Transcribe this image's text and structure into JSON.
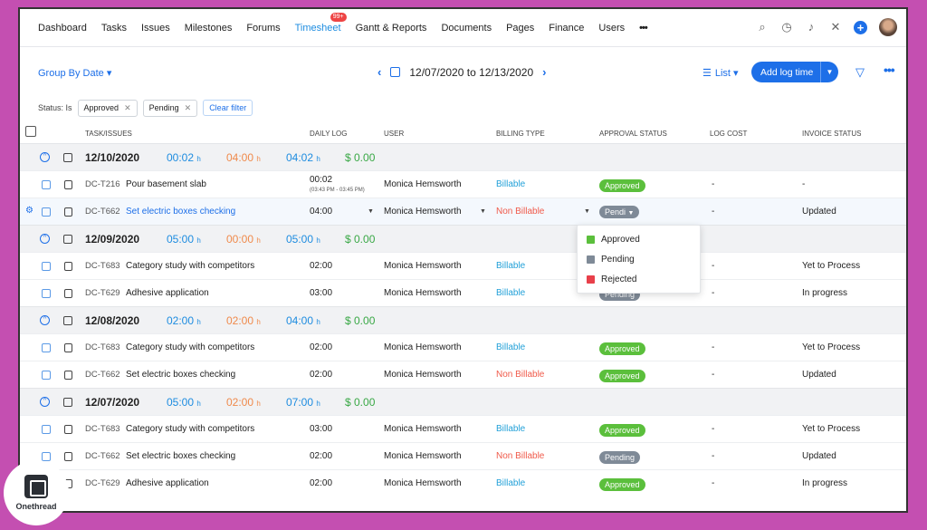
{
  "nav": {
    "items": [
      "Dashboard",
      "Tasks",
      "Issues",
      "Milestones",
      "Forums",
      "Timesheet",
      "Gantt & Reports",
      "Documents",
      "Pages",
      "Finance",
      "Users"
    ],
    "active": "Timesheet",
    "timesheet_badge": "99+",
    "more": "•••"
  },
  "toolbar": {
    "group_by": "Group By Date ▾",
    "date_range": "12/07/2020 to 12/13/2020",
    "view": "List ▾",
    "add_log": "Add log time"
  },
  "filters": {
    "label": "Status: Is",
    "chips": [
      "Approved",
      "Pending"
    ],
    "clear": "Clear filter"
  },
  "columns": [
    "TASK/ISSUES",
    "DAILY LOG",
    "USER",
    "BILLING TYPE",
    "APPROVAL STATUS",
    "LOG COST",
    "INVOICE STATUS"
  ],
  "groups": [
    {
      "date": "12/10/2020",
      "billable_hours": "00:02",
      "non_billable_hours": "04:00",
      "total_hours": "04:02",
      "cost": "$ 0.00",
      "rows": [
        {
          "code": "DC-T216",
          "task": "Pour basement slab",
          "log": "00:02",
          "log_detail": "(03:43 PM - 03:45 PM)",
          "user": "Monica Hemsworth",
          "billing": "Billable",
          "status": "Approved",
          "cost": "-",
          "invoice": "-"
        },
        {
          "code": "DC-T662",
          "task": "Set electric boxes checking",
          "log": "04:00",
          "user": "Monica Hemsworth",
          "billing": "Non Billable",
          "status": "Pendi",
          "cost": "-",
          "invoice": "Updated"
        }
      ]
    },
    {
      "date": "12/09/2020",
      "billable_hours": "05:00",
      "non_billable_hours": "00:00",
      "total_hours": "05:00",
      "cost": "$ 0.00",
      "rows": [
        {
          "code": "DC-T683",
          "task": "Category study with competitors",
          "log": "02:00",
          "user": "Monica Hemsworth",
          "billing": "Billable",
          "status": "",
          "cost": "-",
          "invoice": "Yet to Process"
        },
        {
          "code": "DC-T629",
          "task": "Adhesive application",
          "log": "03:00",
          "user": "Monica Hemsworth",
          "billing": "Billable",
          "status": "Pending",
          "cost": "-",
          "invoice": "In progress"
        }
      ]
    },
    {
      "date": "12/08/2020",
      "billable_hours": "02:00",
      "non_billable_hours": "02:00",
      "total_hours": "04:00",
      "cost": "$ 0.00",
      "rows": [
        {
          "code": "DC-T683",
          "task": "Category study with competitors",
          "log": "02:00",
          "user": "Monica Hemsworth",
          "billing": "Billable",
          "status": "Approved",
          "cost": "-",
          "invoice": "Yet to Process"
        },
        {
          "code": "DC-T662",
          "task": "Set electric boxes checking",
          "log": "02:00",
          "user": "Monica Hemsworth",
          "billing": "Non Billable",
          "status": "Approved",
          "cost": "-",
          "invoice": "Updated"
        }
      ]
    },
    {
      "date": "12/07/2020",
      "billable_hours": "05:00",
      "non_billable_hours": "02:00",
      "total_hours": "07:00",
      "cost": "$ 0.00",
      "rows": [
        {
          "code": "DC-T683",
          "task": "Category study with competitors",
          "log": "03:00",
          "user": "Monica Hemsworth",
          "billing": "Billable",
          "status": "Approved",
          "cost": "-",
          "invoice": "Yet to Process"
        },
        {
          "code": "DC-T662",
          "task": "Set electric boxes checking",
          "log": "02:00",
          "user": "Monica Hemsworth",
          "billing": "Non Billable",
          "status": "Pending",
          "cost": "-",
          "invoice": "Updated"
        },
        {
          "code": "DC-T629",
          "task": "Adhesive application",
          "log": "02:00",
          "user": "Monica Hemsworth",
          "billing": "Billable",
          "status": "Approved",
          "cost": "-",
          "invoice": "In progress"
        }
      ]
    }
  ],
  "hour_unit": "h",
  "status_dropdown": {
    "options": [
      {
        "label": "Approved",
        "color": "#5bbf3c"
      },
      {
        "label": "Pending",
        "color": "#7f8a97"
      },
      {
        "label": "Rejected",
        "color": "#e8404a"
      }
    ]
  },
  "watermark": {
    "text": "Onethread"
  },
  "colors": {
    "accent": "#1d6fe8",
    "frame_bg": "#c44fb1"
  }
}
